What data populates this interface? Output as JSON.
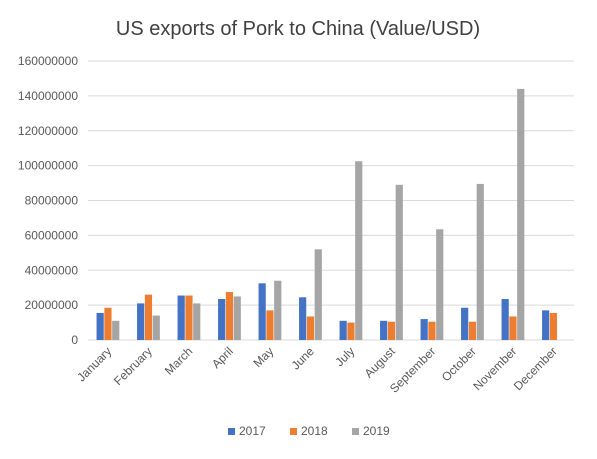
{
  "chart_data": {
    "type": "bar",
    "title": "US exports of Pork to China (Value/USD)",
    "categories": [
      "January",
      "February",
      "March",
      "April",
      "May",
      "June",
      "July",
      "August",
      "September",
      "October",
      "November",
      "December"
    ],
    "series": [
      {
        "name": "2017",
        "color": "#4472C4",
        "values": [
          15500000,
          21000000,
          25500000,
          23500000,
          32500000,
          24500000,
          11000000,
          11000000,
          12000000,
          18500000,
          23500000,
          17000000
        ]
      },
      {
        "name": "2018",
        "color": "#ED7D31",
        "values": [
          18500000,
          26000000,
          25500000,
          27500000,
          17000000,
          13500000,
          10000000,
          10500000,
          10500000,
          10500000,
          13500000,
          15500000
        ]
      },
      {
        "name": "2019",
        "color": "#A5A5A5",
        "values": [
          11000000,
          14000000,
          21000000,
          25000000,
          34000000,
          52000000,
          102500000,
          89000000,
          63500000,
          89500000,
          144000000,
          null
        ]
      }
    ],
    "ylim": [
      0,
      160000000
    ],
    "yticks": [
      "0",
      "20000000",
      "40000000",
      "60000000",
      "80000000",
      "100000000",
      "120000000",
      "140000000",
      "160000000"
    ],
    "grid": true,
    "legend": "bottom"
  }
}
